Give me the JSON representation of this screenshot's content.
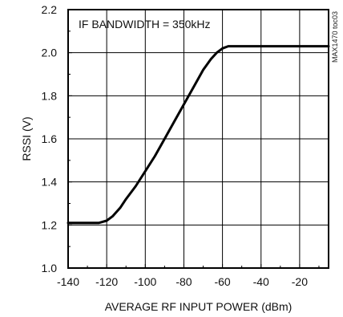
{
  "chart_data": {
    "type": "line",
    "title": "",
    "xlabel": "AVERAGE RF INPUT POWER (dBm)",
    "ylabel": "RSSI (V)",
    "xlim": [
      -140,
      -5
    ],
    "ylim": [
      1.0,
      2.2
    ],
    "xticks": [
      -140,
      -120,
      -100,
      -80,
      -60,
      -40,
      -20
    ],
    "xtick_labels": [
      "-140",
      "-120",
      "-100",
      "-80",
      "-60",
      "-40",
      "-20"
    ],
    "yticks": [
      1.0,
      1.2,
      1.4,
      1.6,
      1.8,
      2.0,
      2.2
    ],
    "ytick_labels": [
      "1.0",
      "1.2",
      "1.4",
      "1.6",
      "1.8",
      "2.0",
      "2.2"
    ],
    "grid": true,
    "annotation": "IF BANDWIDTH = 350kHz",
    "figure_id": "MAX1470 toc03",
    "series": [
      {
        "color": "#000000",
        "x": [
          -140,
          -130,
          -124,
          -120,
          -117,
          -113,
          -110,
          -105,
          -100,
          -95,
          -90,
          -85,
          -80,
          -75,
          -70,
          -66,
          -63,
          -60,
          -57,
          -55,
          -50,
          -40,
          -30,
          -20,
          -10,
          -5
        ],
        "y": [
          1.21,
          1.21,
          1.21,
          1.22,
          1.24,
          1.28,
          1.32,
          1.38,
          1.45,
          1.52,
          1.6,
          1.68,
          1.76,
          1.84,
          1.92,
          1.97,
          2.0,
          2.02,
          2.03,
          2.03,
          2.03,
          2.03,
          2.03,
          2.03,
          2.03,
          2.03
        ]
      }
    ]
  }
}
